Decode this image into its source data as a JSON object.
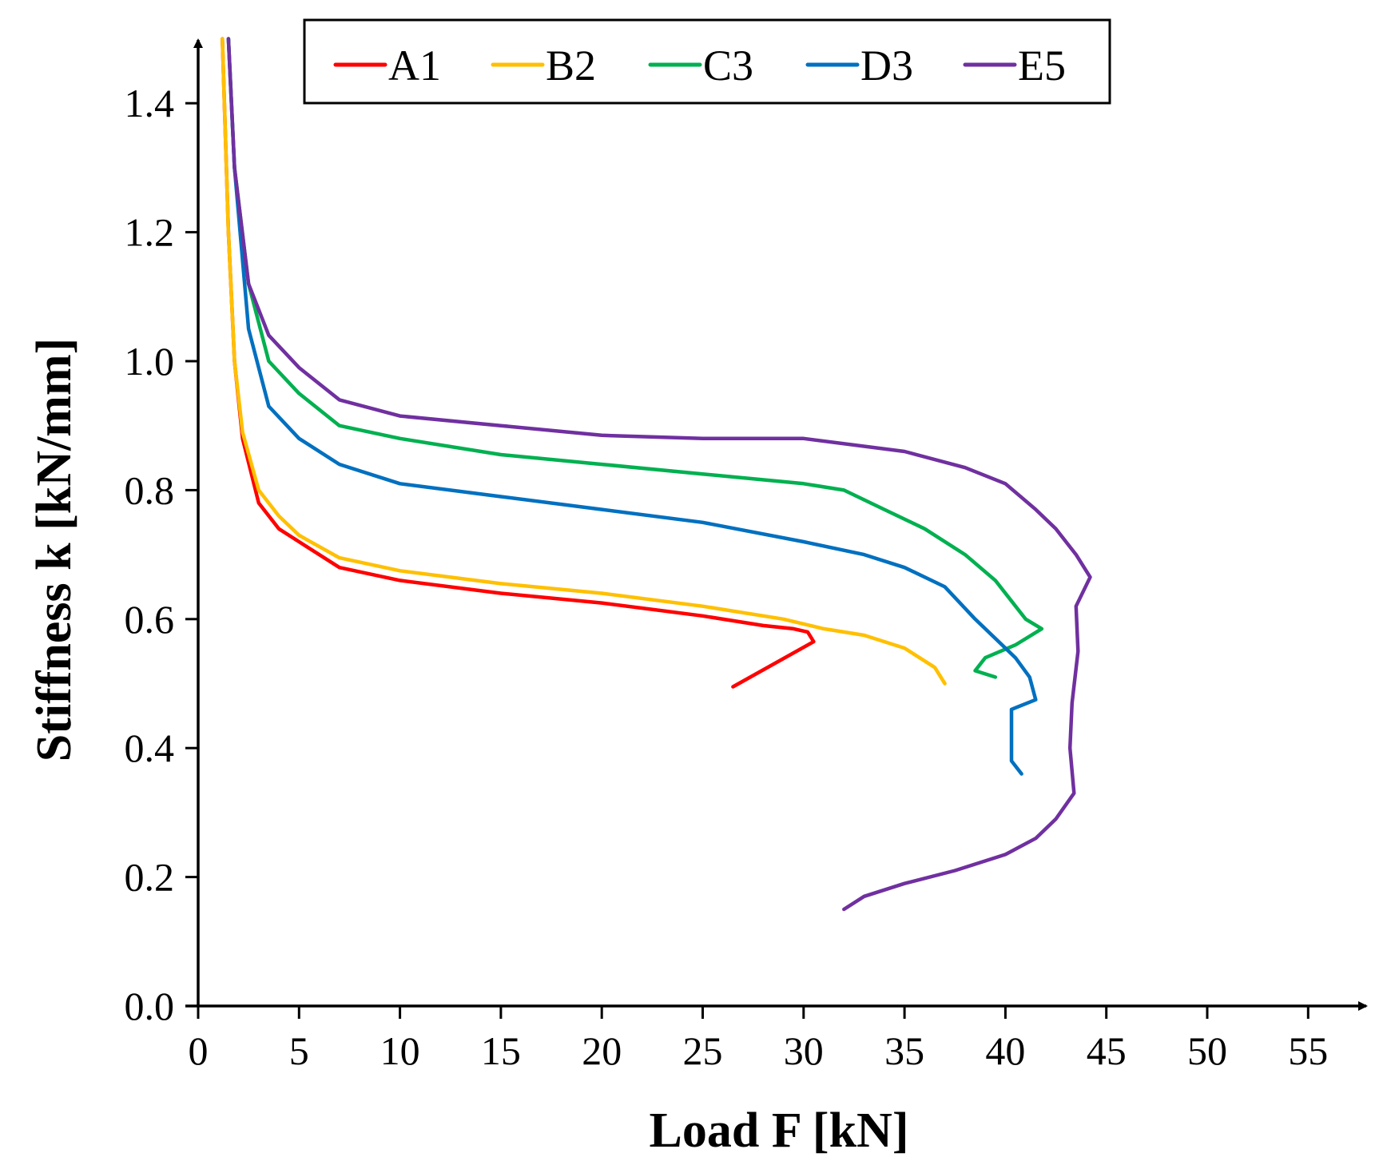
{
  "chart_data": {
    "type": "line",
    "title": "",
    "xlabel": "Load F [kN]",
    "ylabel": "Stiffness k [kN/mm]",
    "xlim": [
      0,
      57
    ],
    "ylim": [
      0,
      1.5
    ],
    "xticks": [
      0,
      5,
      10,
      15,
      20,
      25,
      30,
      35,
      40,
      45,
      50,
      55
    ],
    "yticks": [
      0.0,
      0.2,
      0.4,
      0.6,
      0.8,
      1.0,
      1.2,
      1.4
    ],
    "xtick_labels": [
      "0",
      "5",
      "10",
      "15",
      "20",
      "25",
      "30",
      "35",
      "40",
      "45",
      "50",
      "55"
    ],
    "ytick_labels": [
      "0.0",
      "0.2",
      "0.4",
      "0.6",
      "0.8",
      "1.0",
      "1.2",
      "1.4"
    ],
    "grid": false,
    "legend_position": "top",
    "series": [
      {
        "name": "A1",
        "color": "#FF0000",
        "points": [
          [
            1.2,
            1.5
          ],
          [
            1.5,
            1.2
          ],
          [
            1.8,
            1.0
          ],
          [
            2.2,
            0.88
          ],
          [
            3.0,
            0.78
          ],
          [
            4.0,
            0.74
          ],
          [
            5.0,
            0.72
          ],
          [
            7.0,
            0.68
          ],
          [
            10.0,
            0.66
          ],
          [
            15.0,
            0.64
          ],
          [
            20.0,
            0.625
          ],
          [
            25.0,
            0.605
          ],
          [
            28.0,
            0.59
          ],
          [
            29.5,
            0.585
          ],
          [
            30.2,
            0.58
          ],
          [
            30.5,
            0.565
          ],
          [
            26.5,
            0.495
          ]
        ]
      },
      {
        "name": "B2",
        "color": "#FFC000",
        "points": [
          [
            1.2,
            1.5
          ],
          [
            1.5,
            1.2
          ],
          [
            1.8,
            1.0
          ],
          [
            2.2,
            0.89
          ],
          [
            3.0,
            0.8
          ],
          [
            4.0,
            0.76
          ],
          [
            5.0,
            0.73
          ],
          [
            7.0,
            0.695
          ],
          [
            10.0,
            0.675
          ],
          [
            15.0,
            0.655
          ],
          [
            20.0,
            0.64
          ],
          [
            25.0,
            0.62
          ],
          [
            29.0,
            0.6
          ],
          [
            31.0,
            0.585
          ],
          [
            33.0,
            0.575
          ],
          [
            35.0,
            0.555
          ],
          [
            36.5,
            0.525
          ],
          [
            37.0,
            0.5
          ]
        ]
      },
      {
        "name": "C3",
        "color": "#00B050",
        "points": [
          [
            1.5,
            1.5
          ],
          [
            1.8,
            1.3
          ],
          [
            2.5,
            1.12
          ],
          [
            3.5,
            1.0
          ],
          [
            5.0,
            0.95
          ],
          [
            7.0,
            0.9
          ],
          [
            10.0,
            0.88
          ],
          [
            15.0,
            0.855
          ],
          [
            20.0,
            0.84
          ],
          [
            25.0,
            0.825
          ],
          [
            30.0,
            0.81
          ],
          [
            32.0,
            0.8
          ],
          [
            34.0,
            0.77
          ],
          [
            36.0,
            0.74
          ],
          [
            38.0,
            0.7
          ],
          [
            39.5,
            0.66
          ],
          [
            41.0,
            0.6
          ],
          [
            41.8,
            0.585
          ],
          [
            40.5,
            0.56
          ],
          [
            39.0,
            0.54
          ],
          [
            38.5,
            0.52
          ],
          [
            39.5,
            0.51
          ]
        ]
      },
      {
        "name": "D3",
        "color": "#0070C0",
        "points": [
          [
            1.5,
            1.5
          ],
          [
            1.8,
            1.3
          ],
          [
            2.5,
            1.05
          ],
          [
            3.5,
            0.93
          ],
          [
            5.0,
            0.88
          ],
          [
            7.0,
            0.84
          ],
          [
            10.0,
            0.81
          ],
          [
            15.0,
            0.79
          ],
          [
            20.0,
            0.77
          ],
          [
            25.0,
            0.75
          ],
          [
            30.0,
            0.72
          ],
          [
            33.0,
            0.7
          ],
          [
            35.0,
            0.68
          ],
          [
            37.0,
            0.65
          ],
          [
            38.5,
            0.6
          ],
          [
            39.5,
            0.57
          ],
          [
            40.5,
            0.54
          ],
          [
            41.2,
            0.51
          ],
          [
            41.5,
            0.475
          ],
          [
            40.3,
            0.46
          ],
          [
            40.3,
            0.38
          ],
          [
            40.8,
            0.36
          ]
        ]
      },
      {
        "name": "E5",
        "color": "#7030A0",
        "points": [
          [
            1.5,
            1.5
          ],
          [
            1.8,
            1.3
          ],
          [
            2.5,
            1.12
          ],
          [
            3.5,
            1.04
          ],
          [
            5.0,
            0.99
          ],
          [
            7.0,
            0.94
          ],
          [
            10.0,
            0.915
          ],
          [
            15.0,
            0.9
          ],
          [
            20.0,
            0.885
          ],
          [
            25.0,
            0.88
          ],
          [
            30.0,
            0.88
          ],
          [
            35.0,
            0.86
          ],
          [
            38.0,
            0.835
          ],
          [
            40.0,
            0.81
          ],
          [
            41.5,
            0.77
          ],
          [
            42.5,
            0.74
          ],
          [
            43.5,
            0.7
          ],
          [
            44.2,
            0.665
          ],
          [
            43.5,
            0.62
          ],
          [
            43.6,
            0.55
          ],
          [
            43.3,
            0.47
          ],
          [
            43.2,
            0.4
          ],
          [
            43.4,
            0.33
          ],
          [
            42.5,
            0.29
          ],
          [
            41.5,
            0.26
          ],
          [
            40.0,
            0.235
          ],
          [
            37.5,
            0.21
          ],
          [
            35.0,
            0.19
          ],
          [
            33.0,
            0.17
          ],
          [
            32.5,
            0.16
          ],
          [
            32.0,
            0.15
          ]
        ]
      }
    ]
  }
}
